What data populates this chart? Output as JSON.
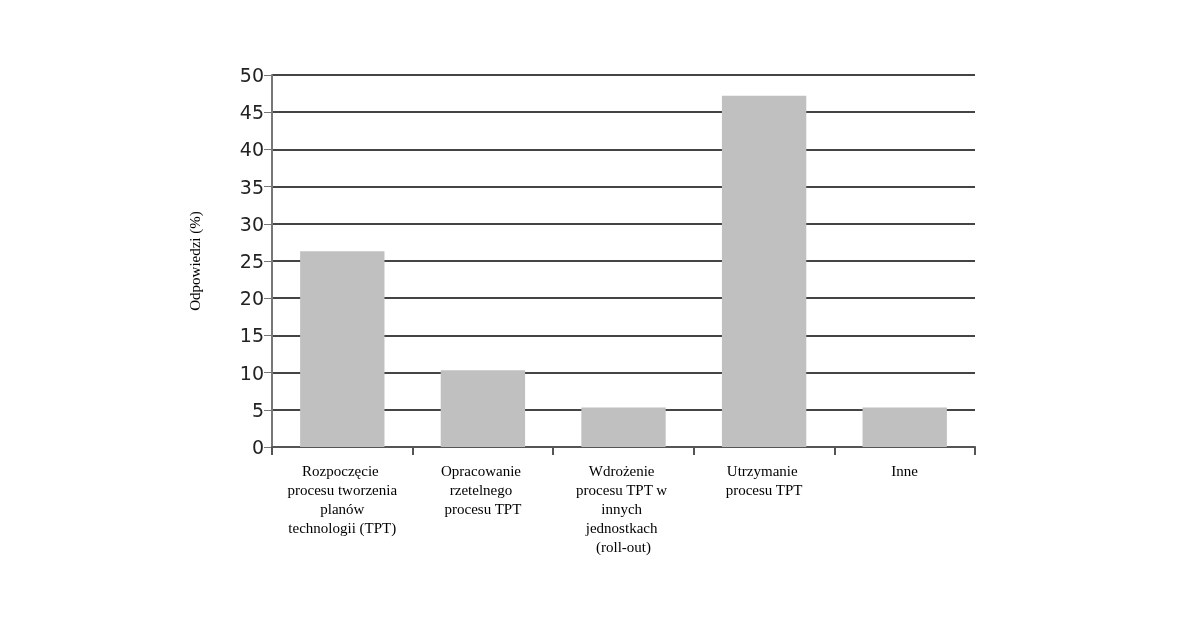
{
  "chart_data": {
    "type": "bar",
    "ylabel": "Odpowiedzi (%)",
    "categories": [
      "Rozpoczęcie procesu tworzenia planów technologii (TPT)",
      "Opracowanie rzetelnego procesu TPT",
      "Wdrożenie procesu TPT w innych jednostkach (roll-out)",
      "Utrzymanie procesu TPT",
      "Inne"
    ],
    "values": [
      26.3,
      10.3,
      5.3,
      47.2,
      5.3
    ],
    "color": "#c0c0c0",
    "ylim": [
      0,
      50
    ],
    "yticks": [
      0,
      5,
      10,
      15,
      20,
      25,
      30,
      35,
      40,
      45,
      50
    ],
    "grid": "y"
  }
}
